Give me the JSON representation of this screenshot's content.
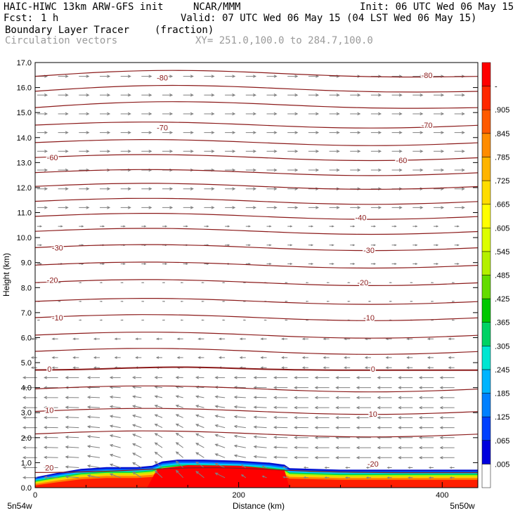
{
  "header": {
    "left_title": "HAIC-HIWC 13km ARW-GFS init",
    "org": "NCAR/MMM",
    "init": "Init: 06 UTC Wed 06 May 15",
    "fcst_label": "Fcst:",
    "fcst_value": "1 h",
    "valid": "Valid: 07 UTC Wed 06 May 15 (04 LST Wed 06 May 15)",
    "field_name": "Boundary Layer Tracer",
    "field_units": "(fraction)",
    "overlay_name": "Circulation vectors",
    "xy_text": "XY= 251.0,100.0 to 284.7,100.0"
  },
  "chart_data": {
    "type": "heatmap",
    "ylabel": "Height (km)",
    "xlabel": "Distance (km)",
    "xlim": [
      0,
      435
    ],
    "ylim": [
      0,
      17
    ],
    "x_ticks": [
      "0",
      "200",
      "400"
    ],
    "x_tick_values": [
      0,
      200,
      400
    ],
    "y_ticks": [
      "0.0",
      "1.0",
      "2.0",
      "3.0",
      "4.0",
      "5.0",
      "6.0",
      "7.0",
      "8.0",
      "9.0",
      "10.0",
      "11.0",
      "12.0",
      "13.0",
      "14.0",
      "15.0",
      "16.0",
      "17.0"
    ],
    "left_endpoint": "5n54w",
    "right_endpoint": "5n50w",
    "colorbar_labels": [
      ".005",
      ".065",
      ".125",
      ".185",
      ".245",
      ".305",
      ".365",
      ".425",
      ".485",
      ".545",
      ".605",
      ".665",
      ".725",
      ".785",
      ".845",
      ".905",
      "-"
    ],
    "colorbar_colors": [
      "#ffffff",
      "#0000dd",
      "#0040ff",
      "#0080ff",
      "#00b4ff",
      "#00e6d2",
      "#00d264",
      "#00c800",
      "#64dc00",
      "#b4f000",
      "#dcff00",
      "#ffff00",
      "#ffdc00",
      "#ffb400",
      "#ff8c00",
      "#ff5a00",
      "#ff2800",
      "#ff0000"
    ],
    "contour_labels": [
      {
        "text": "-80",
        "x": 125,
        "y": 16.4
      },
      {
        "text": "-80",
        "x": 385,
        "y": 16.5
      },
      {
        "text": "-70",
        "x": 125,
        "y": 14.4
      },
      {
        "text": "-70",
        "x": 385,
        "y": 14.5
      },
      {
        "text": "-60",
        "x": 17,
        "y": 13.2
      },
      {
        "text": "-60",
        "x": 360,
        "y": 13.1
      },
      {
        "text": "-40",
        "x": 320,
        "y": 10.8
      },
      {
        "text": "-30",
        "x": 22,
        "y": 9.6
      },
      {
        "text": "-30",
        "x": 328,
        "y": 9.5
      },
      {
        "text": "-20",
        "x": 17,
        "y": 8.3
      },
      {
        "text": "-20",
        "x": 322,
        "y": 8.2
      },
      {
        "text": "-10",
        "x": 22,
        "y": 6.8
      },
      {
        "text": "-10",
        "x": 328,
        "y": 6.8
      },
      {
        "text": "0",
        "x": 14,
        "y": 4.75
      },
      {
        "text": "0",
        "x": 332,
        "y": 4.75
      },
      {
        "text": "10",
        "x": 14,
        "y": 3.1
      },
      {
        "text": "10",
        "x": 332,
        "y": 2.95
      },
      {
        "text": "20",
        "x": 14,
        "y": 0.8
      },
      {
        "text": "-20",
        "x": 332,
        "y": 0.95
      }
    ]
  }
}
